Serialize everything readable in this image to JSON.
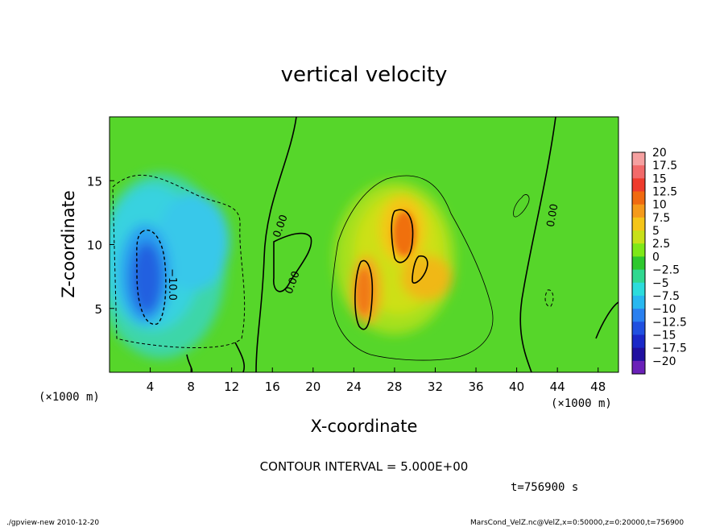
{
  "chart_data": {
    "type": "heatmap",
    "title": "vertical velocity",
    "xlabel": "X-coordinate",
    "ylabel": "Z-coordinate",
    "x_unit_label": "(×1000 m)",
    "y_unit_label": "(×1000 m)",
    "xlim": [
      0,
      50
    ],
    "ylim": [
      0,
      20
    ],
    "x_ticks": [
      "4",
      "8",
      "12",
      "16",
      "20",
      "24",
      "28",
      "32",
      "36",
      "40",
      "44",
      "48"
    ],
    "y_ticks": [
      "5",
      "10",
      "15"
    ],
    "colorbar": {
      "labels": [
        "20",
        "17.5",
        "15",
        "12.5",
        "10",
        "7.5",
        "5",
        "2.5",
        "0",
        "−2.5",
        "−5",
        "−7.5",
        "−10",
        "−12.5",
        "−15",
        "−17.5",
        "−20"
      ],
      "colors": [
        "#f5a0a0",
        "#f26a6a",
        "#ef3b2c",
        "#f06a10",
        "#f59a1a",
        "#f5c518",
        "#c8e018",
        "#7ee818",
        "#2ec82e",
        "#30d890",
        "#2cdcdc",
        "#28b8f0",
        "#2a80f0",
        "#2050e0",
        "#1a28c8",
        "#2010a0",
        "#6a20b8"
      ]
    },
    "contour_labels": [
      "0.00",
      "0.00",
      "0.00",
      "−10.0"
    ],
    "contour_interval": "CONTOUR INTERVAL = 5.000E+00",
    "time": "t=756900 s",
    "grid": false
  },
  "footer": {
    "left": "./gpview-new  2010-12-20",
    "right": "MarsCond_VelZ.nc@VelZ,x=0:50000,z=0:20000,t=756900"
  }
}
